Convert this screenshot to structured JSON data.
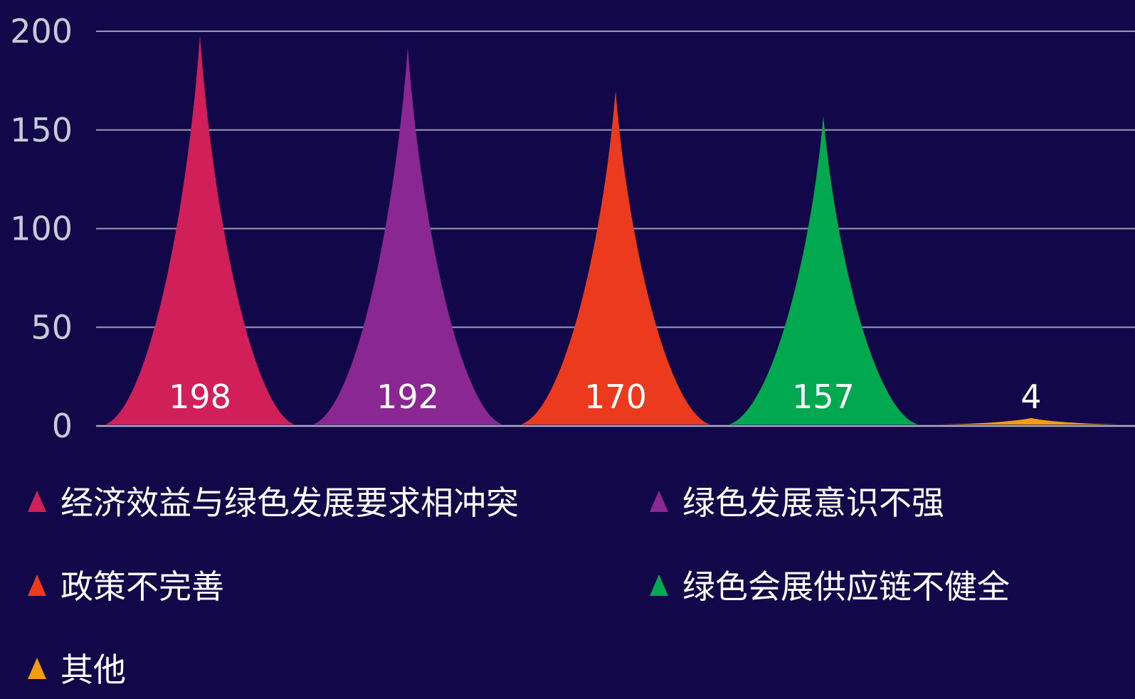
{
  "chart_data": {
    "type": "bar",
    "bar_shape": "pictorial-spike",
    "categories": [
      "经济效益与绿色发展要求相冲突",
      "绿色发展意识不强",
      "政策不完善",
      "绿色会展供应链不健全",
      "其他"
    ],
    "values": [
      198,
      192,
      170,
      157,
      4
    ],
    "data_labels": [
      "198",
      "192",
      "170",
      "157",
      "4"
    ],
    "colors": [
      "#D11F5A",
      "#8A2792",
      "#EC3A1E",
      "#00A94F",
      "#F39C12"
    ],
    "ylim": [
      0,
      200
    ],
    "yticks": [
      0,
      50,
      100,
      150,
      200
    ],
    "ytick_labels": [
      "0",
      "50",
      "100",
      "150",
      "200"
    ],
    "grid": true,
    "legend_position": "bottom",
    "legend_icon": "triangle",
    "background_color": "#120749",
    "axis_color": "#C9C9D9",
    "label_color": "#FFFFFF"
  }
}
